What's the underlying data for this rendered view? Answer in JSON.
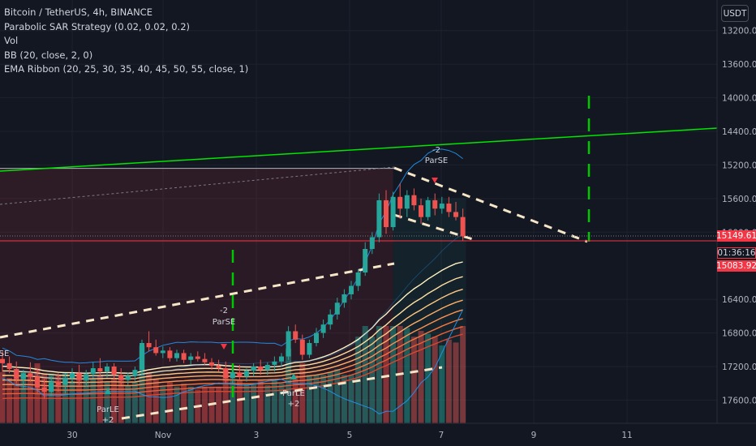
{
  "chart_header": {
    "symbol": "Bitcoin / TetherUS, 4h, BINANCE",
    "indicators": [
      "Parabolic SAR Strategy (0.02, 0.02, 0.2)",
      "Vol",
      "BB (20, close, 2, 0)",
      "EMA Ribbon (20, 25, 30, 35, 40, 45, 50, 55, close, 1)"
    ]
  },
  "currency_button": "USDT",
  "price_axis": {
    "ticks": [
      "17600.00",
      "17200.00",
      "16800.00",
      "16400.00",
      "16000.00",
      "15600.00",
      "15200.00",
      "14400.00",
      "14000.00",
      "13600.00",
      "13200.00"
    ],
    "current_price": "15149.61",
    "countdown": "01:36:16",
    "sar_price": "15083.92"
  },
  "time_axis": {
    "ticks": [
      "30",
      "Nov",
      "3",
      "5",
      "7",
      "9",
      "11"
    ]
  },
  "annotations": {
    "sell_label_1": "ParSE",
    "sell_qty_1": "-2",
    "sell_label_2": "ParSE",
    "sell_qty_2": "-2",
    "sell_label_left": "SE",
    "buy_label_1": "ParLE",
    "buy_qty_1": "+2",
    "buy_label_2": "ParLE",
    "buy_qty_2": "+2"
  },
  "colors": {
    "background": "#131722",
    "bull": "#26a69a",
    "bear": "#ef5350",
    "trendline": "#00e600",
    "projection": "#00c800",
    "current_price_line": "#f23645",
    "pattern_line": "#f5e6c8"
  },
  "chart_data": {
    "type": "candlestick",
    "symbol": "BTCUSDT",
    "timeframe": "4h",
    "exchange": "BINANCE",
    "ylim": [
      13000,
      17800
    ],
    "y_ticks": [
      13200,
      13600,
      14000,
      14400,
      15200,
      15600,
      16000,
      16400,
      16800,
      17200,
      17600
    ],
    "x_ticks": [
      "30",
      "Nov",
      "3",
      "5",
      "7",
      "9",
      "11"
    ],
    "last_price": 15149.61,
    "candles": [
      {
        "o": 13690,
        "h": 13780,
        "l": 13540,
        "c": 13640
      },
      {
        "o": 13640,
        "h": 13720,
        "l": 13520,
        "c": 13570
      },
      {
        "o": 13570,
        "h": 13660,
        "l": 13400,
        "c": 13450
      },
      {
        "o": 13450,
        "h": 13560,
        "l": 13320,
        "c": 13520
      },
      {
        "o": 13520,
        "h": 13650,
        "l": 13420,
        "c": 13480
      },
      {
        "o": 13480,
        "h": 13580,
        "l": 13280,
        "c": 13350
      },
      {
        "o": 13350,
        "h": 13450,
        "l": 13220,
        "c": 13300
      },
      {
        "o": 13300,
        "h": 13480,
        "l": 13250,
        "c": 13420
      },
      {
        "o": 13420,
        "h": 13520,
        "l": 13300,
        "c": 13380
      },
      {
        "o": 13380,
        "h": 13520,
        "l": 13280,
        "c": 13460
      },
      {
        "o": 13460,
        "h": 13580,
        "l": 13400,
        "c": 13520
      },
      {
        "o": 13520,
        "h": 13620,
        "l": 13380,
        "c": 13440
      },
      {
        "o": 13440,
        "h": 13560,
        "l": 13360,
        "c": 13510
      },
      {
        "o": 13510,
        "h": 13650,
        "l": 13460,
        "c": 13580
      },
      {
        "o": 13580,
        "h": 13700,
        "l": 13480,
        "c": 13540
      },
      {
        "o": 13540,
        "h": 13640,
        "l": 13470,
        "c": 13600
      },
      {
        "o": 13600,
        "h": 13640,
        "l": 13440,
        "c": 13500
      },
      {
        "o": 13500,
        "h": 13580,
        "l": 13380,
        "c": 13440
      },
      {
        "o": 13440,
        "h": 13530,
        "l": 13380,
        "c": 13490
      },
      {
        "o": 13490,
        "h": 13600,
        "l": 13430,
        "c": 13560
      },
      {
        "o": 13560,
        "h": 13920,
        "l": 13500,
        "c": 13880
      },
      {
        "o": 13880,
        "h": 14020,
        "l": 13780,
        "c": 13830
      },
      {
        "o": 13830,
        "h": 13920,
        "l": 13730,
        "c": 13760
      },
      {
        "o": 13760,
        "h": 13840,
        "l": 13700,
        "c": 13790
      },
      {
        "o": 13790,
        "h": 13830,
        "l": 13660,
        "c": 13700
      },
      {
        "o": 13700,
        "h": 13800,
        "l": 13660,
        "c": 13760
      },
      {
        "o": 13760,
        "h": 13800,
        "l": 13640,
        "c": 13680
      },
      {
        "o": 13680,
        "h": 13760,
        "l": 13620,
        "c": 13720
      },
      {
        "o": 13720,
        "h": 13780,
        "l": 13660,
        "c": 13690
      },
      {
        "o": 13690,
        "h": 13760,
        "l": 13620,
        "c": 13650
      },
      {
        "o": 13650,
        "h": 13700,
        "l": 13560,
        "c": 13610
      },
      {
        "o": 13610,
        "h": 13680,
        "l": 13540,
        "c": 13580
      },
      {
        "o": 13580,
        "h": 13660,
        "l": 13400,
        "c": 13460
      },
      {
        "o": 13460,
        "h": 13580,
        "l": 13400,
        "c": 13530
      },
      {
        "o": 13530,
        "h": 13620,
        "l": 13440,
        "c": 13480
      },
      {
        "o": 13480,
        "h": 13580,
        "l": 13420,
        "c": 13550
      },
      {
        "o": 13550,
        "h": 13640,
        "l": 13480,
        "c": 13600
      },
      {
        "o": 13600,
        "h": 13680,
        "l": 13500,
        "c": 13560
      },
      {
        "o": 13560,
        "h": 13650,
        "l": 13500,
        "c": 13620
      },
      {
        "o": 13620,
        "h": 13720,
        "l": 13540,
        "c": 13660
      },
      {
        "o": 13660,
        "h": 13760,
        "l": 13600,
        "c": 13720
      },
      {
        "o": 13720,
        "h": 14080,
        "l": 13680,
        "c": 14020
      },
      {
        "o": 14020,
        "h": 14100,
        "l": 13880,
        "c": 13920
      },
      {
        "o": 13920,
        "h": 13980,
        "l": 13680,
        "c": 13740
      },
      {
        "o": 13740,
        "h": 13920,
        "l": 13700,
        "c": 13880
      },
      {
        "o": 13880,
        "h": 14060,
        "l": 13840,
        "c": 14000
      },
      {
        "o": 14000,
        "h": 14160,
        "l": 13940,
        "c": 14100
      },
      {
        "o": 14100,
        "h": 14280,
        "l": 14040,
        "c": 14220
      },
      {
        "o": 14220,
        "h": 14420,
        "l": 14160,
        "c": 14360
      },
      {
        "o": 14360,
        "h": 14520,
        "l": 14300,
        "c": 14460
      },
      {
        "o": 14460,
        "h": 14620,
        "l": 14400,
        "c": 14560
      },
      {
        "o": 14560,
        "h": 14760,
        "l": 14500,
        "c": 14720
      },
      {
        "o": 14720,
        "h": 15080,
        "l": 14680,
        "c": 15000
      },
      {
        "o": 15000,
        "h": 15200,
        "l": 14940,
        "c": 15140
      },
      {
        "o": 15140,
        "h": 15660,
        "l": 15080,
        "c": 15580
      },
      {
        "o": 15580,
        "h": 15700,
        "l": 15180,
        "c": 15260
      },
      {
        "o": 15260,
        "h": 15680,
        "l": 15220,
        "c": 15620
      },
      {
        "o": 15620,
        "h": 15780,
        "l": 15360,
        "c": 15480
      },
      {
        "o": 15480,
        "h": 15700,
        "l": 15380,
        "c": 15640
      },
      {
        "o": 15640,
        "h": 15720,
        "l": 15460,
        "c": 15520
      },
      {
        "o": 15520,
        "h": 15600,
        "l": 15300,
        "c": 15380
      },
      {
        "o": 15380,
        "h": 15620,
        "l": 15340,
        "c": 15580
      },
      {
        "o": 15580,
        "h": 15660,
        "l": 15400,
        "c": 15480
      },
      {
        "o": 15480,
        "h": 15620,
        "l": 15420,
        "c": 15540
      },
      {
        "o": 15540,
        "h": 15620,
        "l": 15380,
        "c": 15440
      },
      {
        "o": 15440,
        "h": 15560,
        "l": 15340,
        "c": 15380
      },
      {
        "o": 15380,
        "h": 15480,
        "l": 15100,
        "c": 15149.61
      }
    ]
  }
}
